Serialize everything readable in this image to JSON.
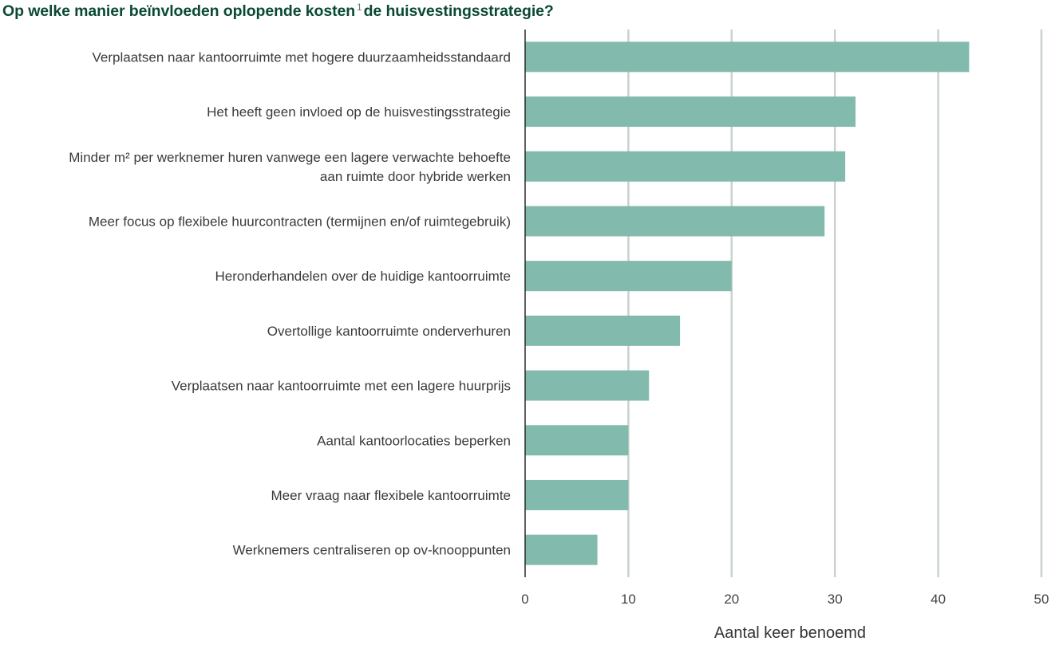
{
  "title_parts": {
    "before": "Op welke manier beïnvloeden oplopende kosten",
    "footnote": "1",
    "after": "de huisvestingsstrategie?"
  },
  "colors": {
    "bar": "#82bbad",
    "grid": "#c9d1cd",
    "axis": "#2b2b2b",
    "title": "#0b4a32"
  },
  "chart_data": {
    "type": "bar",
    "orientation": "horizontal",
    "title": "Op welke manier beïnvloeden oplopende kosten 1 de huisvestingsstrategie?",
    "xlabel": "Aantal keer benoemd",
    "ylabel": "",
    "xlim": [
      0,
      50
    ],
    "xticks": [
      0,
      10,
      20,
      30,
      40,
      50
    ],
    "grid": true,
    "categories": [
      [
        "Verplaatsen naar kantoorruimte met hogere duurzaamheidsstandaard"
      ],
      [
        "Het heeft geen invloed op de huisvestingsstrategie"
      ],
      [
        "Minder m² per werknemer huren vanwege een lagere verwachte behoefte",
        "aan ruimte door hybride werken"
      ],
      [
        "Meer focus op flexibele huurcontracten (termijnen en/of ruimtegebruik)"
      ],
      [
        "Heronderhandelen over de huidige kantoorruimte"
      ],
      [
        "Overtollige kantoorruimte onderverhuren"
      ],
      [
        "Verplaatsen naar kantoorruimte met een lagere huurprijs"
      ],
      [
        "Aantal kantoorlocaties beperken"
      ],
      [
        "Meer vraag naar flexibele kantoorruimte"
      ],
      [
        "Werknemers centraliseren op ov-knooppunten"
      ]
    ],
    "values": [
      43,
      32,
      31,
      29,
      20,
      15,
      12,
      10,
      10,
      7
    ]
  }
}
